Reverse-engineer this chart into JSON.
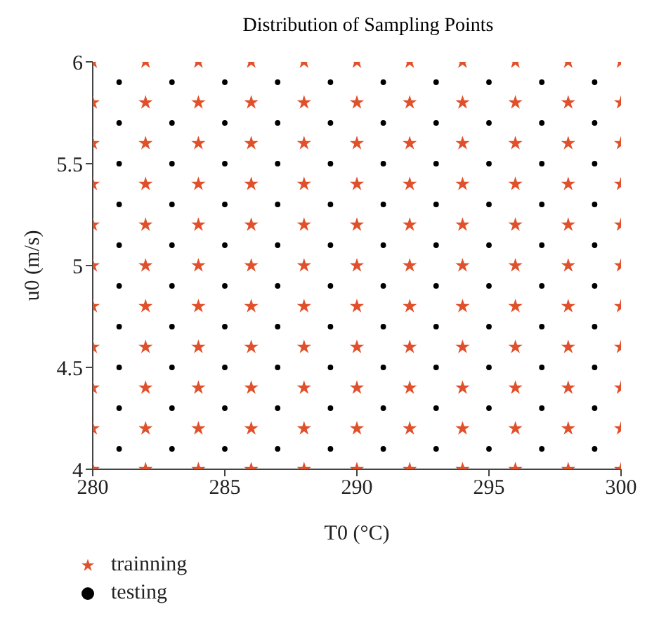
{
  "chart_data": {
    "type": "scatter",
    "title": "Distribution of Sampling Points",
    "xlabel": "T0 (°C)",
    "ylabel": "u0 (m/s)",
    "xlim": [
      280,
      300
    ],
    "xticks": [
      280,
      285,
      290,
      295,
      300
    ],
    "ylim": [
      4,
      6
    ],
    "yticks": [
      4,
      4.5,
      5,
      5.5,
      6
    ],
    "grid": false,
    "legend": "bottom left",
    "series": [
      {
        "name": "trainning",
        "color": "#e0502a",
        "marker": "star",
        "x": [
          280,
          282,
          284,
          286,
          288,
          290,
          292,
          294,
          296,
          298,
          300,
          280,
          282,
          284,
          286,
          288,
          290,
          292,
          294,
          296,
          298,
          300,
          280,
          282,
          284,
          286,
          288,
          290,
          292,
          294,
          296,
          298,
          300,
          280,
          282,
          284,
          286,
          288,
          290,
          292,
          294,
          296,
          298,
          300,
          280,
          282,
          284,
          286,
          288,
          290,
          292,
          294,
          296,
          298,
          300,
          280,
          282,
          284,
          286,
          288,
          290,
          292,
          294,
          296,
          298,
          300,
          280,
          282,
          284,
          286,
          288,
          290,
          292,
          294,
          296,
          298,
          300,
          280,
          282,
          284,
          286,
          288,
          290,
          292,
          294,
          296,
          298,
          300,
          280,
          282,
          284,
          286,
          288,
          290,
          292,
          294,
          296,
          298,
          300,
          280,
          282,
          284,
          286,
          288,
          290,
          292,
          294,
          296,
          298,
          300,
          280,
          282,
          284,
          286,
          288,
          290,
          292,
          294,
          296,
          298,
          300
        ],
        "values": [
          4,
          4,
          4,
          4,
          4,
          4,
          4,
          4,
          4,
          4,
          4,
          4.2,
          4.2,
          4.2,
          4.2,
          4.2,
          4.2,
          4.2,
          4.2,
          4.2,
          4.2,
          4.2,
          4.4,
          4.4,
          4.4,
          4.4,
          4.4,
          4.4,
          4.4,
          4.4,
          4.4,
          4.4,
          4.4,
          4.6,
          4.6,
          4.6,
          4.6,
          4.6,
          4.6,
          4.6,
          4.6,
          4.6,
          4.6,
          4.6,
          4.8,
          4.8,
          4.8,
          4.8,
          4.8,
          4.8,
          4.8,
          4.8,
          4.8,
          4.8,
          4.8,
          5,
          5,
          5,
          5,
          5,
          5,
          5,
          5,
          5,
          5,
          5,
          5.2,
          5.2,
          5.2,
          5.2,
          5.2,
          5.2,
          5.2,
          5.2,
          5.2,
          5.2,
          5.2,
          5.4,
          5.4,
          5.4,
          5.4,
          5.4,
          5.4,
          5.4,
          5.4,
          5.4,
          5.4,
          5.4,
          5.6,
          5.6,
          5.6,
          5.6,
          5.6,
          5.6,
          5.6,
          5.6,
          5.6,
          5.6,
          5.6,
          5.8,
          5.8,
          5.8,
          5.8,
          5.8,
          5.8,
          5.8,
          5.8,
          5.8,
          5.8,
          5.8,
          6,
          6,
          6,
          6,
          6,
          6,
          6,
          6,
          6,
          6,
          6
        ]
      },
      {
        "name": "testing",
        "color": "#000000",
        "marker": "circle",
        "x": [
          281,
          283,
          285,
          287,
          289,
          291,
          293,
          295,
          297,
          299,
          281,
          283,
          285,
          287,
          289,
          291,
          293,
          295,
          297,
          299,
          281,
          283,
          285,
          287,
          289,
          291,
          293,
          295,
          297,
          299,
          281,
          283,
          285,
          287,
          289,
          291,
          293,
          295,
          297,
          299,
          281,
          283,
          285,
          287,
          289,
          291,
          293,
          295,
          297,
          299,
          281,
          283,
          285,
          287,
          289,
          291,
          293,
          295,
          297,
          299,
          281,
          283,
          285,
          287,
          289,
          291,
          293,
          295,
          297,
          299,
          281,
          283,
          285,
          287,
          289,
          291,
          293,
          295,
          297,
          299,
          281,
          283,
          285,
          287,
          289,
          291,
          293,
          295,
          297,
          299,
          281,
          283,
          285,
          287,
          289,
          291,
          293,
          295,
          297,
          299
        ],
        "values": [
          4.1,
          4.1,
          4.1,
          4.1,
          4.1,
          4.1,
          4.1,
          4.1,
          4.1,
          4.1,
          4.3,
          4.3,
          4.3,
          4.3,
          4.3,
          4.3,
          4.3,
          4.3,
          4.3,
          4.3,
          4.5,
          4.5,
          4.5,
          4.5,
          4.5,
          4.5,
          4.5,
          4.5,
          4.5,
          4.5,
          4.7,
          4.7,
          4.7,
          4.7,
          4.7,
          4.7,
          4.7,
          4.7,
          4.7,
          4.7,
          4.9,
          4.9,
          4.9,
          4.9,
          4.9,
          4.9,
          4.9,
          4.9,
          4.9,
          4.9,
          5.1,
          5.1,
          5.1,
          5.1,
          5.1,
          5.1,
          5.1,
          5.1,
          5.1,
          5.1,
          5.3,
          5.3,
          5.3,
          5.3,
          5.3,
          5.3,
          5.3,
          5.3,
          5.3,
          5.3,
          5.5,
          5.5,
          5.5,
          5.5,
          5.5,
          5.5,
          5.5,
          5.5,
          5.5,
          5.5,
          5.7,
          5.7,
          5.7,
          5.7,
          5.7,
          5.7,
          5.7,
          5.7,
          5.7,
          5.7,
          5.9,
          5.9,
          5.9,
          5.9,
          5.9,
          5.9,
          5.9,
          5.9,
          5.9,
          5.9
        ]
      }
    ]
  }
}
